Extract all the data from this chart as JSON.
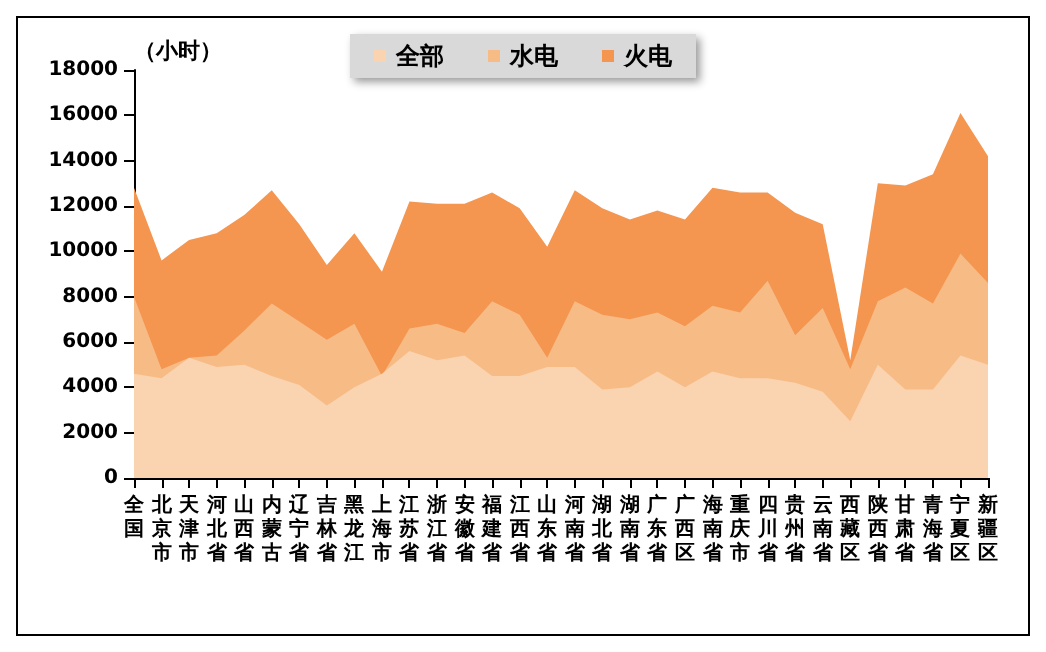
{
  "chart_data": {
    "type": "area",
    "ylabel": "（小时）",
    "categories": [
      "全国",
      "北京市",
      "天津市",
      "河北省",
      "山西省",
      "内蒙古",
      "辽宁省",
      "吉林省",
      "黑龙江",
      "上海市",
      "江苏省",
      "浙江省",
      "安徽省",
      "福建省",
      "江西省",
      "山东省",
      "河南省",
      "湖北省",
      "湖南省",
      "广东省",
      "广西区",
      "海南省",
      "重庆市",
      "四川省",
      "贵州省",
      "云南省",
      "西藏区",
      "陕西省",
      "甘肃省",
      "青海省",
      "宁夏区",
      "新疆区"
    ],
    "series": [
      {
        "name": "全部",
        "color": "#fad3b0",
        "values": [
          4600,
          4400,
          5300,
          4900,
          5000,
          4500,
          4100,
          3200,
          4000,
          4600,
          5600,
          5200,
          5400,
          4500,
          4500,
          4900,
          4900,
          3900,
          4000,
          4700,
          4000,
          4700,
          4400,
          4400,
          4200,
          3800,
          2500,
          5000,
          3900,
          3900,
          5400,
          5000
        ]
      },
      {
        "name": "水电",
        "color": "#f7bb86",
        "values": [
          8000,
          4800,
          5300,
          5400,
          6500,
          7700,
          6900,
          6100,
          6800,
          4500,
          6600,
          6800,
          6400,
          7800,
          7200,
          5300,
          7800,
          7200,
          7000,
          7300,
          6700,
          7600,
          7300,
          8700,
          6300,
          7500,
          4800,
          7800,
          8400,
          7700,
          9900,
          8600
        ]
      },
      {
        "name": "火电",
        "color": "#f49550",
        "values": [
          12800,
          9600,
          10500,
          10800,
          11600,
          12700,
          11200,
          9400,
          10800,
          9100,
          12200,
          12100,
          12100,
          12600,
          11900,
          10200,
          12700,
          11900,
          11400,
          11800,
          11400,
          12800,
          12600,
          12600,
          11700,
          11200,
          5200,
          13000,
          12900,
          13400,
          16100,
          14200
        ]
      }
    ],
    "ylim": [
      0,
      18000
    ],
    "yticks": [
      0,
      2000,
      4000,
      6000,
      8000,
      10000,
      12000,
      14000,
      16000,
      18000
    ],
    "grid": false,
    "legend": "top"
  }
}
